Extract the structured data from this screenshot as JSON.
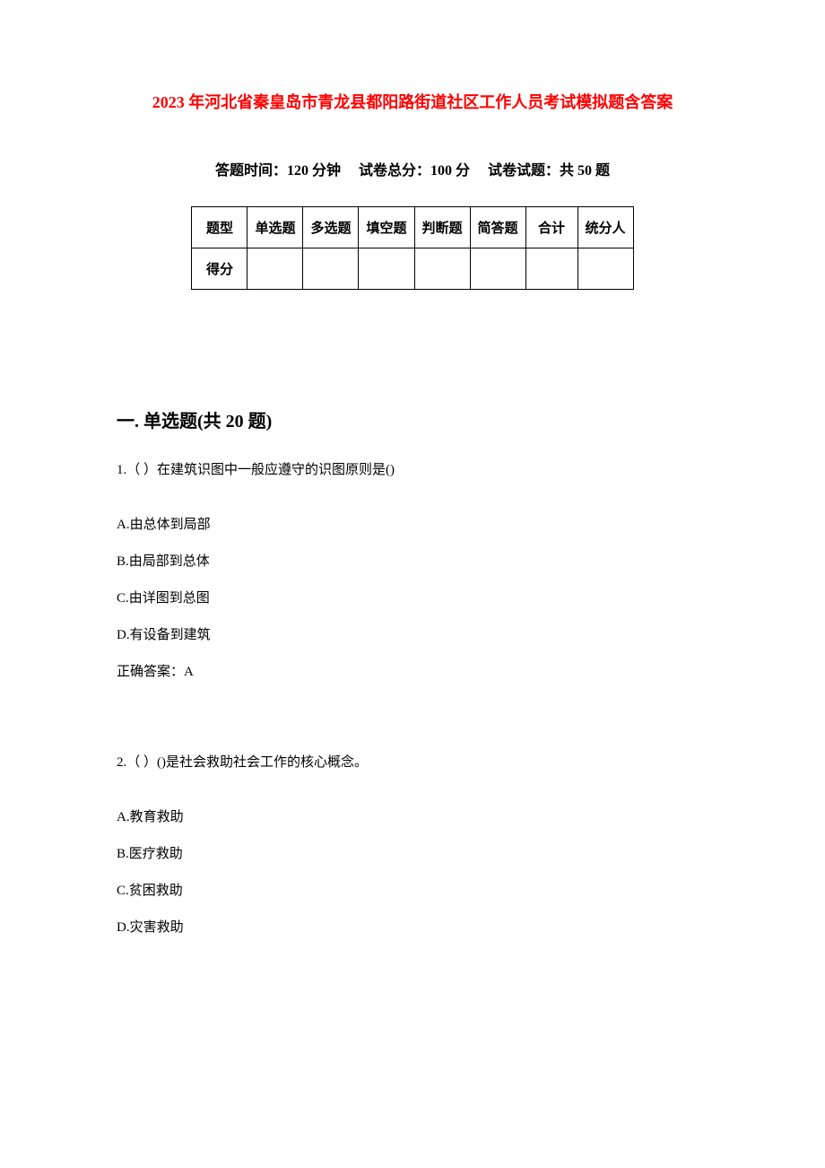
{
  "title": "2023 年河北省秦皇岛市青龙县都阳路街道社区工作人员考试模拟题含答案",
  "exam_info": {
    "time_label": "答题时间：",
    "time_value": "120 分钟",
    "total_label": "试卷总分：",
    "total_value": "100 分",
    "count_label": "试卷试题：",
    "count_value": "共 50 题"
  },
  "score_table": {
    "row1": {
      "label": "题型",
      "col1": "单选题",
      "col2": "多选题",
      "col3": "填空题",
      "col4": "判断题",
      "col5": "简答题",
      "col6": "合计",
      "col7": "统分人"
    },
    "row2": {
      "label": "得分",
      "col1": "",
      "col2": "",
      "col3": "",
      "col4": "",
      "col5": "",
      "col6": "",
      "col7": ""
    }
  },
  "section1": {
    "heading": "一. 单选题(共 20 题)",
    "q1": {
      "text": "1.（ ）在建筑识图中一般应遵守的识图原则是()",
      "optA": "A.由总体到局部",
      "optB": "B.由局部到总体",
      "optC": "C.由详图到总图",
      "optD": "D.有设备到建筑",
      "answer": "正确答案：A"
    },
    "q2": {
      "text": "2.（ ）()是社会救助社会工作的核心概念。",
      "optA": "A.教育救助",
      "optB": "B.医疗救助",
      "optC": "C.贫困救助",
      "optD": "D.灾害救助"
    }
  },
  "style": {
    "title_color": "#ff0000",
    "text_color": "#000000",
    "background_color": "#ffffff",
    "border_color": "#000000",
    "title_fontsize": 18,
    "body_fontsize": 15,
    "heading_fontsize": 20,
    "exam_info_fontsize": 16
  }
}
